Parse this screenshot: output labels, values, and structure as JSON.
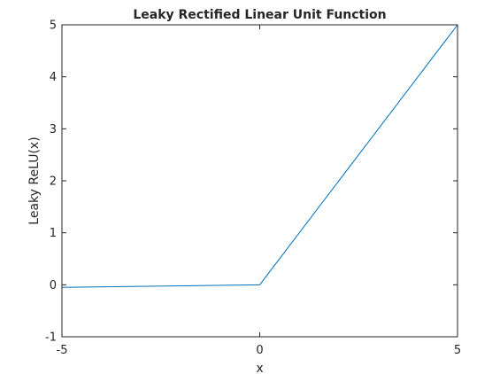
{
  "chart_data": {
    "type": "line",
    "title": "Leaky Rectified Linear Unit Function",
    "xlabel": "x",
    "ylabel": "Leaky ReLU(x)",
    "xlim": [
      -5,
      5
    ],
    "ylim": [
      -1,
      5
    ],
    "xticks": [
      -5,
      0,
      5
    ],
    "yticks": [
      -1,
      0,
      1,
      2,
      3,
      4,
      5
    ],
    "grid": false,
    "legend": "none",
    "series": [
      {
        "color": "#0072bd",
        "x": [
          -5,
          0,
          5
        ],
        "y": [
          -0.05,
          0,
          5
        ]
      }
    ]
  }
}
